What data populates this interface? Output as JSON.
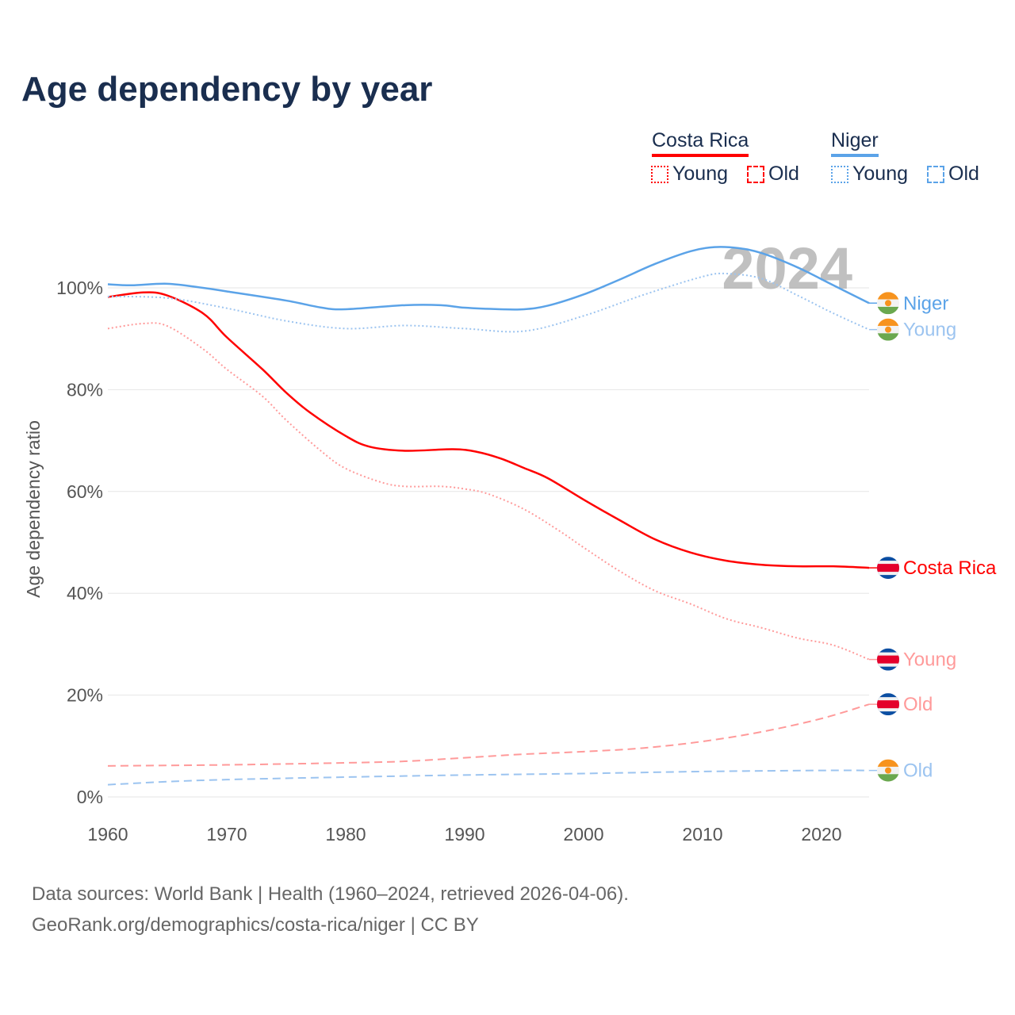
{
  "chart_data": {
    "type": "line",
    "title": "Age dependency by year",
    "ylabel": "Age dependency ratio",
    "xlabel": "",
    "xlim": [
      1960,
      2024
    ],
    "ylim": [
      0,
      100
    ],
    "x_ticks": [
      "1960",
      "1970",
      "1980",
      "1990",
      "2000",
      "2010",
      "2020"
    ],
    "y_ticks": [
      "0%",
      "20%",
      "40%",
      "60%",
      "80%",
      "100%"
    ],
    "year_label": "2024",
    "legend": {
      "placement": "top-right",
      "groups": [
        {
          "country": "Costa Rica",
          "color": "#ff0000",
          "young": "Young",
          "old": "Old",
          "light": "#ff9a9a"
        },
        {
          "country": "Niger",
          "color": "#5ba3e8",
          "young": "Young",
          "old": "Old",
          "light": "#9cc4f0"
        }
      ]
    },
    "series": [
      {
        "name": "Costa Rica",
        "end_label": "Costa Rica",
        "color": "#ff0000",
        "style": "solid",
        "flag": "costa-rica",
        "x": [
          1960,
          1963,
          1965,
          1968,
          1970,
          1973,
          1975,
          1977,
          1980,
          1982,
          1985,
          1989,
          1991,
          1993,
          1995,
          1997,
          2000,
          2003,
          2006,
          2009,
          2012,
          2015,
          2018,
          2021,
          2024
        ],
        "y": [
          98.2,
          99.1,
          98.5,
          95,
          90.3,
          84,
          79.4,
          75.5,
          70.9,
          68.8,
          68,
          68.3,
          67.8,
          66.5,
          64.6,
          62.6,
          58.4,
          54.4,
          50.6,
          48,
          46.4,
          45.6,
          45.3,
          45.3,
          45
        ]
      },
      {
        "name": "Costa Rica Young",
        "end_label": "Young",
        "color": "#ff9a9a",
        "style": "dotted",
        "flag": "costa-rica",
        "x": [
          1960,
          1963,
          1965,
          1968,
          1970,
          1973,
          1975,
          1978,
          1980,
          1983,
          1985,
          1988,
          1990,
          1992,
          1995,
          1998,
          2000,
          2003,
          2006,
          2009,
          2012,
          2015,
          2018,
          2021,
          2024
        ],
        "y": [
          92,
          93,
          92.5,
          88,
          84,
          78.7,
          74,
          67.8,
          64.5,
          61.8,
          61,
          61,
          60.5,
          59.5,
          56.5,
          52.2,
          49,
          44.4,
          40.5,
          37.9,
          35,
          33.2,
          31.2,
          29.8,
          27
        ]
      },
      {
        "name": "Costa Rica Old",
        "end_label": "Old",
        "color": "#ff9a9a",
        "style": "dashed",
        "flag": "costa-rica",
        "x": [
          1960,
          1970,
          1980,
          1985,
          1990,
          1995,
          2000,
          2005,
          2010,
          2015,
          2020,
          2024
        ],
        "y": [
          6.1,
          6.3,
          6.7,
          7,
          7.7,
          8.4,
          8.9,
          9.6,
          10.9,
          12.8,
          15.4,
          18.2
        ]
      },
      {
        "name": "Niger",
        "end_label": "Niger",
        "color": "#5ba3e8",
        "style": "solid",
        "flag": "niger",
        "x": [
          1960,
          1962,
          1965,
          1968,
          1970,
          1975,
          1978,
          1980,
          1985,
          1988,
          1990,
          1993,
          1995,
          1997,
          2000,
          2003,
          2006,
          2009,
          2011,
          2013,
          2015,
          2018,
          2021,
          2024
        ],
        "y": [
          100.7,
          100.5,
          100.8,
          100,
          99.3,
          97.5,
          96.1,
          95.8,
          96.6,
          96.6,
          96.1,
          95.8,
          95.8,
          96.5,
          98.7,
          101.6,
          104.7,
          107.2,
          108,
          107.8,
          106.8,
          104,
          100.5,
          97
        ]
      },
      {
        "name": "Niger Young",
        "end_label": "Young",
        "color": "#9cc4f0",
        "style": "dotted",
        "flag": "niger",
        "x": [
          1960,
          1965,
          1970,
          1975,
          1980,
          1985,
          1990,
          1995,
          2000,
          2005,
          2010,
          2012,
          2015,
          2018,
          2021,
          2024
        ],
        "y": [
          98.3,
          98,
          96,
          93.5,
          92,
          92.6,
          92,
          91.5,
          94.5,
          98.6,
          102.2,
          102.8,
          101.8,
          98.5,
          95,
          91.8
        ]
      },
      {
        "name": "Niger Old",
        "end_label": "Old",
        "color": "#9cc4f0",
        "style": "dashed",
        "flag": "niger",
        "x": [
          1960,
          1965,
          1970,
          1980,
          1990,
          2000,
          2010,
          2020,
          2024
        ],
        "y": [
          2.4,
          3,
          3.4,
          3.9,
          4.3,
          4.6,
          5,
          5.2,
          5.2
        ]
      }
    ]
  },
  "source": {
    "line1": "Data sources: World Bank | Health (1960–2024, retrieved 2026-04-06).",
    "line2": "GeoRank.org/demographics/costa-rica/niger | CC BY"
  }
}
